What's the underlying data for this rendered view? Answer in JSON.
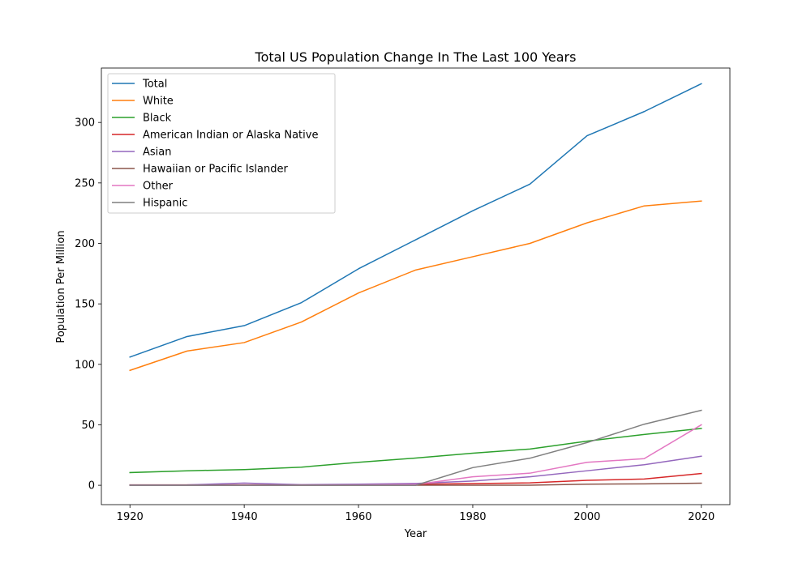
{
  "chart_data": {
    "type": "line",
    "title": "Total US Population Change In The Last 100 Years",
    "xlabel": "Year",
    "ylabel": "Population Per Million",
    "x": [
      1920,
      1930,
      1940,
      1950,
      1960,
      1970,
      1980,
      1990,
      2000,
      2010,
      2020
    ],
    "xlim": [
      1915,
      2025
    ],
    "ylim": [
      -16,
      345
    ],
    "xticks": [
      1920,
      1940,
      1960,
      1980,
      2000,
      2020
    ],
    "yticks": [
      0,
      50,
      100,
      150,
      200,
      250,
      300
    ],
    "grid": false,
    "legend_position": "top-left",
    "series": [
      {
        "name": "Total",
        "color": "#1f77b4",
        "values": [
          106,
          123,
          132,
          151,
          179,
          203,
          227,
          249,
          289,
          309,
          332
        ]
      },
      {
        "name": "White",
        "color": "#ff7f0e",
        "values": [
          95,
          111,
          118,
          135,
          159,
          178,
          189,
          200,
          217,
          231,
          235
        ]
      },
      {
        "name": "Black",
        "color": "#2ca02c",
        "values": [
          10.5,
          12,
          13,
          15,
          19,
          22.5,
          26.5,
          30,
          36.5,
          42,
          47
        ]
      },
      {
        "name": "American Indian or Alaska Native",
        "color": "#d62728",
        "values": [
          0.3,
          0.3,
          0.3,
          0.3,
          0.5,
          0.8,
          1.4,
          2,
          4.1,
          5.2,
          9.7
        ]
      },
      {
        "name": "Asian",
        "color": "#9467bd",
        "values": [
          0.2,
          0.3,
          1.8,
          0.5,
          0.9,
          1.5,
          3.5,
          7,
          12,
          17,
          24
        ]
      },
      {
        "name": "Hawaiian or Pacific Islander",
        "color": "#8c564b",
        "values": [
          0.1,
          0.1,
          0.1,
          0.1,
          0.1,
          0.1,
          0.1,
          0.1,
          0.9,
          1.2,
          1.7
        ]
      },
      {
        "name": "Other",
        "color": "#e377c2",
        "values": [
          0,
          0,
          0.1,
          0.1,
          0.2,
          0.7,
          7,
          10,
          19,
          22,
          50
        ]
      },
      {
        "name": "Hispanic",
        "color": "#7f7f7f",
        "values": [
          0,
          0,
          0,
          0,
          0,
          0,
          14.6,
          22.4,
          35.3,
          50.5,
          62
        ]
      }
    ]
  }
}
